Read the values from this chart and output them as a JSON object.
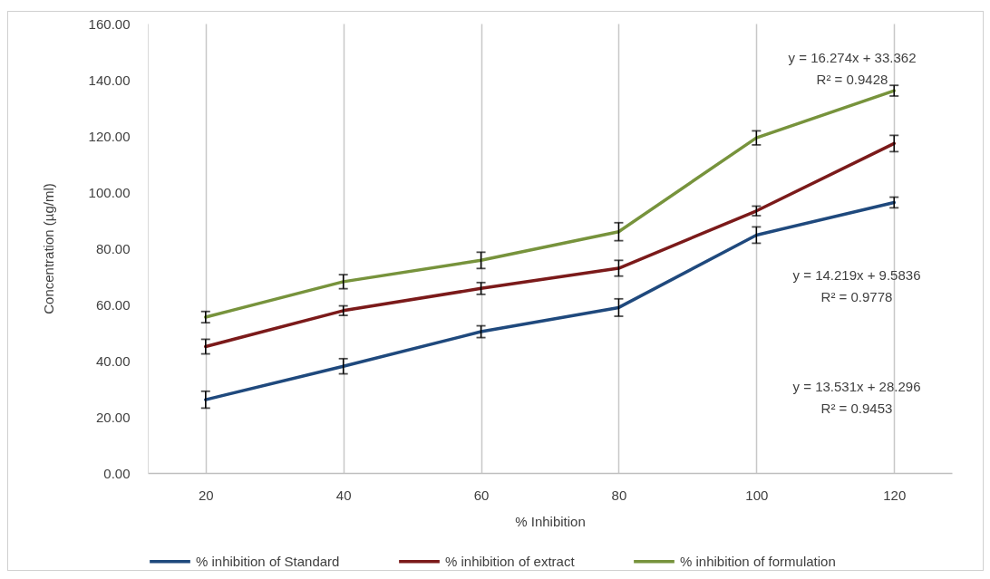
{
  "chart_data": {
    "type": "line",
    "xlabel": "% Inhibition",
    "ylabel": "Concentration (µg/ml)",
    "categories": [
      "20",
      "40",
      "60",
      "80",
      "100",
      "120"
    ],
    "series": [
      {
        "name": "% inhibition of Standard",
        "color": "#1f497d",
        "values": [
          26.1,
          38.0,
          50.3,
          58.9,
          84.7,
          96.3
        ],
        "errors": [
          3.0,
          2.7,
          2.1,
          3.1,
          2.9,
          1.9
        ]
      },
      {
        "name": "% inhibition of extract",
        "color": "#7b1a1a",
        "values": [
          45.0,
          57.8,
          65.7,
          72.9,
          93.3,
          117.3
        ],
        "errors": [
          2.6,
          1.7,
          2.1,
          2.8,
          1.7,
          2.9
        ]
      },
      {
        "name": "% inhibition of formulation",
        "color": "#77933c",
        "values": [
          55.5,
          68.1,
          75.7,
          85.9,
          119.3,
          136.1
        ],
        "errors": [
          2.0,
          2.5,
          2.9,
          3.2,
          2.5,
          1.9
        ]
      }
    ],
    "ylim": [
      0,
      160
    ],
    "yticks": [
      {
        "value": 0,
        "label": "0.00"
      },
      {
        "value": 20,
        "label": "20.00"
      },
      {
        "value": 40,
        "label": "40.00"
      },
      {
        "value": 60,
        "label": "60.00"
      },
      {
        "value": 80,
        "label": "80.00"
      },
      {
        "value": 100,
        "label": "100.00"
      },
      {
        "value": 120,
        "label": "120.00"
      },
      {
        "value": 140,
        "label": "140.00"
      },
      {
        "value": 160,
        "label": "160.00"
      }
    ],
    "annotations": [
      "y = 16.274x + 33.362\nR² = 0.9428",
      "y = 14.219x + 9.5836\nR² = 0.9778",
      "y = 13.531x + 28.296\nR² = 0.9453"
    ],
    "grid": "x",
    "legend": "bottom"
  }
}
